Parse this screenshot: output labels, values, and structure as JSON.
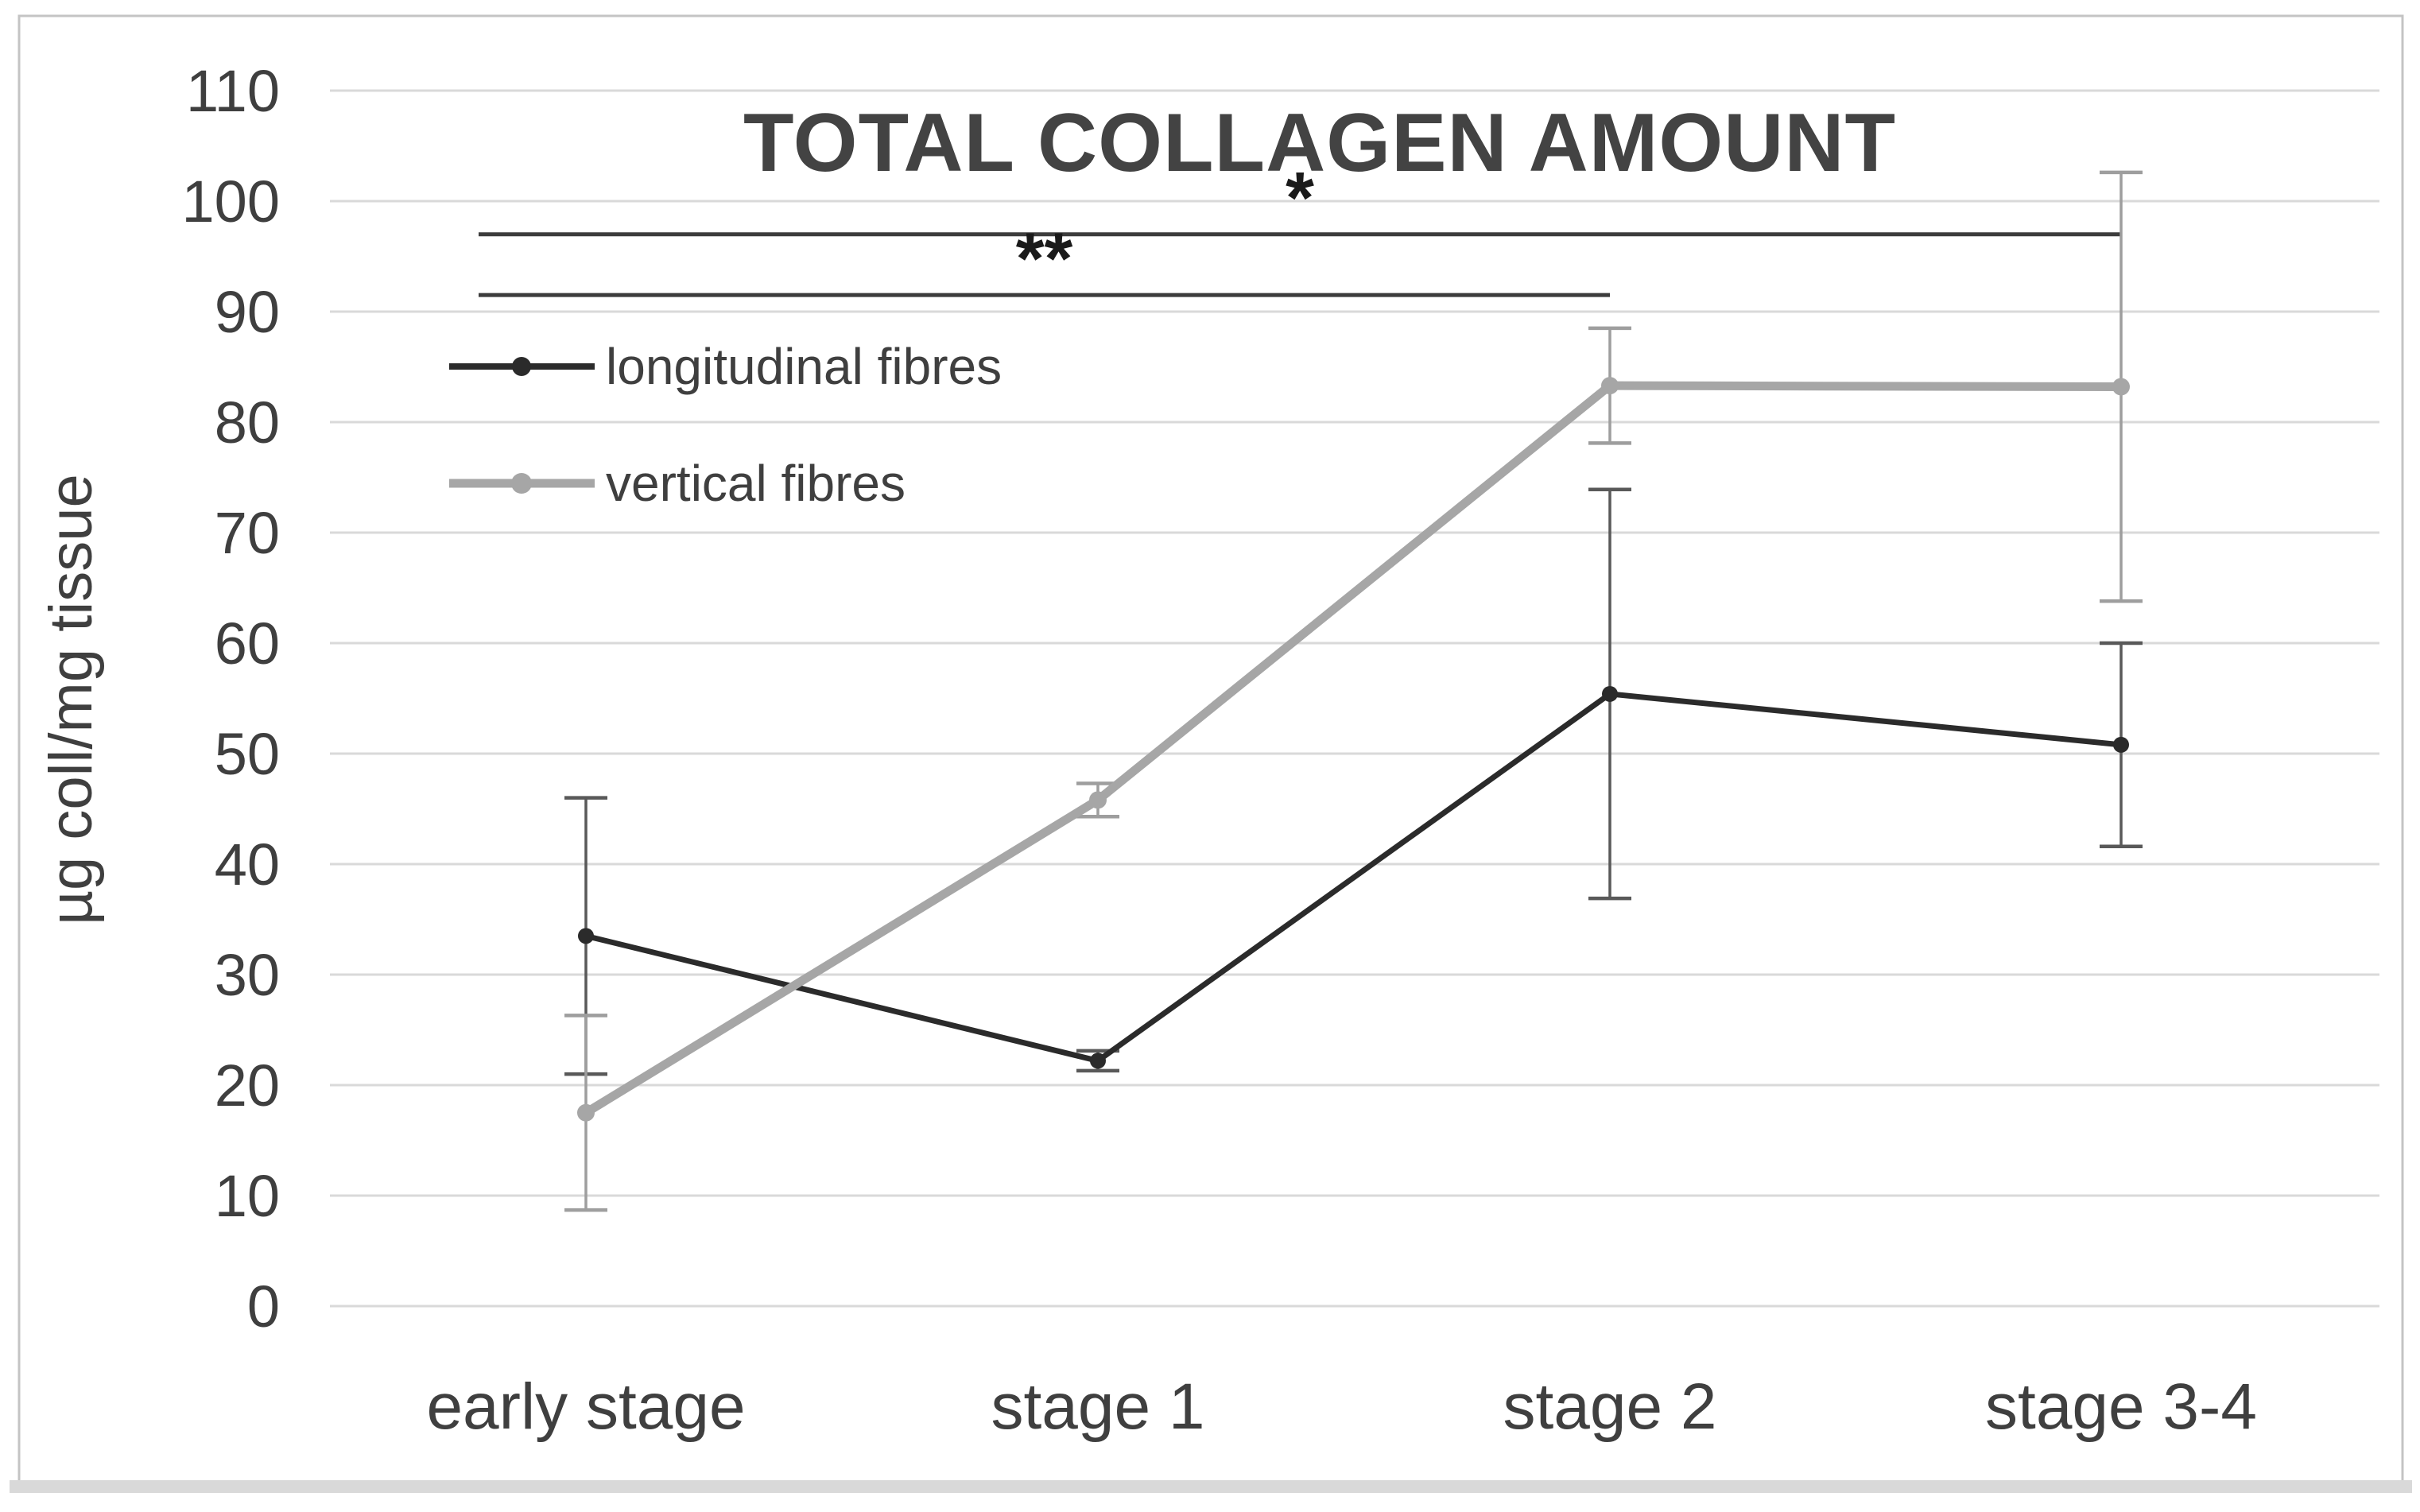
{
  "figure": {
    "title": "TOTAL COLLAGEN AMOUNT",
    "y_axis_label": "µg coll/mg tissue"
  },
  "legend": {
    "items": [
      {
        "label": "longitudinal fibres"
      },
      {
        "label": "vertical fibres"
      }
    ]
  },
  "colors": {
    "longitudinal_series": "#2b2b2b",
    "vertical_series": "#a6a6a6",
    "gridline": "#d9d9d9",
    "text": "#3f3f3f",
    "significance_line": "#3c3c3c",
    "frame_border": "#c4c4c4",
    "frame_bottom_strip": "#d9d9d9"
  },
  "chart_data": {
    "type": "line",
    "title": "TOTAL COLLAGEN AMOUNT",
    "xlabel": "",
    "ylabel": "µg coll/mg tissue",
    "ylim": [
      0,
      110
    ],
    "ytick_step": 10,
    "yticks": [
      0,
      10,
      20,
      30,
      40,
      50,
      60,
      70,
      80,
      90,
      100,
      110
    ],
    "grid": true,
    "legend_position": "inside-top-left",
    "categories": [
      "early stage",
      "stage 1",
      "stage 2",
      "stage 3-4"
    ],
    "series": [
      {
        "name": "longitudinal fibres",
        "color": "#2b2b2b",
        "error_color": "#595959",
        "line_width": 7,
        "marker_radius": 10,
        "values": [
          33.5,
          22.2,
          55.4,
          50.8
        ],
        "error": [
          12.5,
          0.9,
          18.5,
          9.2
        ]
      },
      {
        "name": "vertical fibres",
        "color": "#a6a6a6",
        "error_color": "#9e9e9e",
        "line_width": 11,
        "marker_radius": 11,
        "values": [
          17.5,
          45.8,
          83.3,
          83.2
        ],
        "error": [
          8.8,
          1.5,
          5.2,
          19.4
        ]
      }
    ],
    "annotations": [
      {
        "label": "*",
        "kind": "significance-line",
        "y_value": 97,
        "from_category": "early stage",
        "to_category": "stage 3-4"
      },
      {
        "label": "**",
        "kind": "significance-line",
        "y_value": 91.5,
        "from_category": "early stage",
        "to_category": "stage 2"
      }
    ]
  }
}
